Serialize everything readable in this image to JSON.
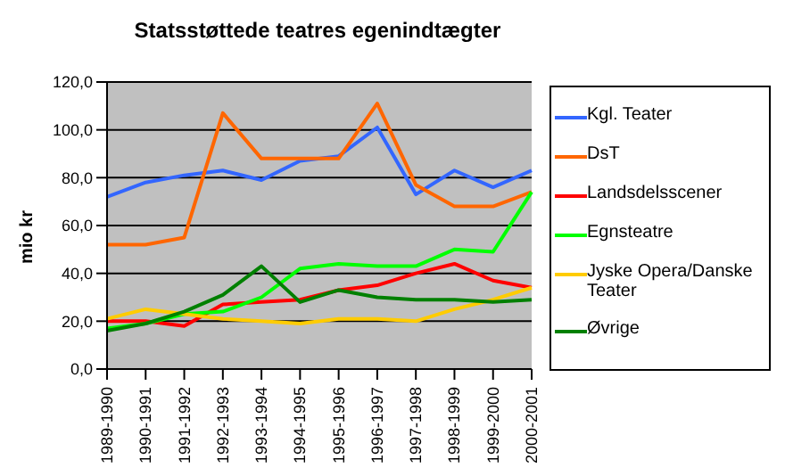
{
  "chart_data": {
    "type": "line",
    "title": "Statsstøttede teatres egenindtægter",
    "ylabel": "mio kr",
    "categories": [
      "1989-1990",
      "1990-1991",
      "1991-1992",
      "1992-1993",
      "1993-1994",
      "1994-1995",
      "1995-1996",
      "1996-1997",
      "1997-1998",
      "1998-1999",
      "1999-2000",
      "2000-2001"
    ],
    "series": [
      {
        "name": "Kgl. Teater",
        "color": "#3366ff",
        "values": [
          72,
          78,
          81,
          83,
          79,
          87,
          89,
          101,
          73,
          83,
          76,
          83
        ]
      },
      {
        "name": "DsT",
        "color": "#ff6600",
        "values": [
          52,
          52,
          55,
          107,
          88,
          88,
          88,
          111,
          77,
          68,
          68,
          74
        ]
      },
      {
        "name": "Landsdelsscener",
        "color": "#ff0000",
        "values": [
          20,
          20,
          18,
          27,
          28,
          29,
          33,
          35,
          40,
          44,
          37,
          34
        ]
      },
      {
        "name": "Egnsteatre",
        "color": "#00ff00",
        "values": [
          17,
          19,
          23,
          24,
          30,
          42,
          44,
          43,
          43,
          50,
          49,
          74
        ]
      },
      {
        "name": "Jyske Opera/Danske Teater",
        "color": "#ffcc00",
        "values": [
          21,
          25,
          23,
          21,
          20,
          19,
          21,
          21,
          20,
          25,
          29,
          34
        ]
      },
      {
        "name": "Øvrige",
        "color": "#008000",
        "values": [
          16,
          19,
          24,
          31,
          43,
          28,
          33,
          30,
          29,
          29,
          28,
          29
        ]
      }
    ],
    "ylim": [
      0,
      120
    ],
    "yticks": [
      {
        "value": 0,
        "label": "0,0"
      },
      {
        "value": 20,
        "label": "20,0"
      },
      {
        "value": 40,
        "label": "40,0"
      },
      {
        "value": 60,
        "label": "60,0"
      },
      {
        "value": 80,
        "label": "80,0"
      },
      {
        "value": 100,
        "label": "100,0"
      },
      {
        "value": 120,
        "label": "120,0"
      }
    ],
    "grid": "y",
    "legend": "right",
    "marker": "none",
    "line_style": "solid"
  }
}
